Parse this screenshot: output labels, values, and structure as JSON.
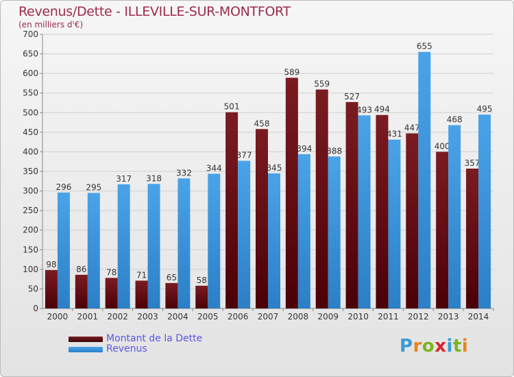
{
  "title": "Revenus/Dette - ILLEVILLE-SUR-MONTFORT",
  "subtitle": "(en milliers d'€)",
  "logo": {
    "letters": [
      "P",
      "r",
      "o",
      "x",
      "i",
      "t",
      "i"
    ],
    "colors": [
      "#3a9bd8",
      "#e8841c",
      "#7ab51d",
      "#d9232d",
      "#3a9bd8",
      "#7ab51d",
      "#e8841c"
    ]
  },
  "colors": {
    "dette": "#7a1c22",
    "revenus": "#4aa3e8",
    "axis": "#888888",
    "grid": "#d0d0d0"
  },
  "legend": [
    {
      "label": "Montant de la Dette",
      "color_key": "dette"
    },
    {
      "label": "Revenus",
      "color_key": "revenus"
    }
  ],
  "chart_data": {
    "type": "bar",
    "categories": [
      "2000",
      "2001",
      "2002",
      "2003",
      "2004",
      "2005",
      "2006",
      "2007",
      "2008",
      "2009",
      "2010",
      "2011",
      "2012",
      "2013",
      "2014"
    ],
    "series": [
      {
        "name": "Montant de la Dette",
        "values": [
          98,
          86,
          78,
          71,
          65,
          58,
          501,
          458,
          589,
          559,
          527,
          494,
          447,
          400,
          357
        ]
      },
      {
        "name": "Revenus",
        "values": [
          296,
          295,
          317,
          318,
          332,
          344,
          377,
          345,
          394,
          388,
          493,
          431,
          655,
          468,
          495
        ]
      }
    ],
    "ylim": [
      0,
      700
    ],
    "yticks": [
      0,
      50,
      100,
      150,
      200,
      250,
      300,
      350,
      400,
      450,
      500,
      550,
      600,
      650,
      700
    ],
    "grid": true,
    "legend_position": "bottom-left"
  }
}
